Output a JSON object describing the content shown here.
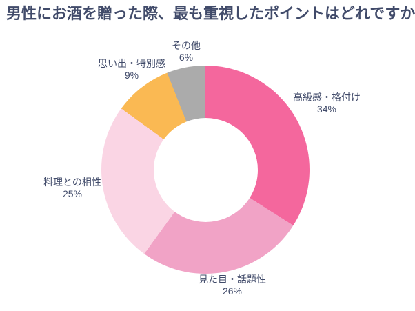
{
  "title": "男性にお酒を贈った際、最も重視したポイントはどれですか？",
  "colors": {
    "background": "#FFFFFF",
    "text": "#414B6A"
  },
  "chart_data": {
    "type": "pie",
    "variant": "donut",
    "title": "男性にお酒を贈った際、最も重視したポイントはどれですか？",
    "start_angle_deg": 0,
    "direction": "clockwise",
    "inner_radius_ratio": 0.5,
    "legend": "none",
    "label_position": "outside",
    "units": "%",
    "segments": [
      {
        "label": "高級感・格付け",
        "value": 34,
        "pct_label": "34%",
        "color": "#F4679D"
      },
      {
        "label": "見た目・話題性",
        "value": 26,
        "pct_label": "26%",
        "color": "#F1A3C6"
      },
      {
        "label": "料理との相性",
        "value": 25,
        "pct_label": "25%",
        "color": "#FAD5E4"
      },
      {
        "label": "思い出・特別感",
        "value": 9,
        "pct_label": "9%",
        "color": "#FAB953"
      },
      {
        "label": "その他",
        "value": 6,
        "pct_label": "6%",
        "color": "#ABABAB"
      }
    ]
  }
}
